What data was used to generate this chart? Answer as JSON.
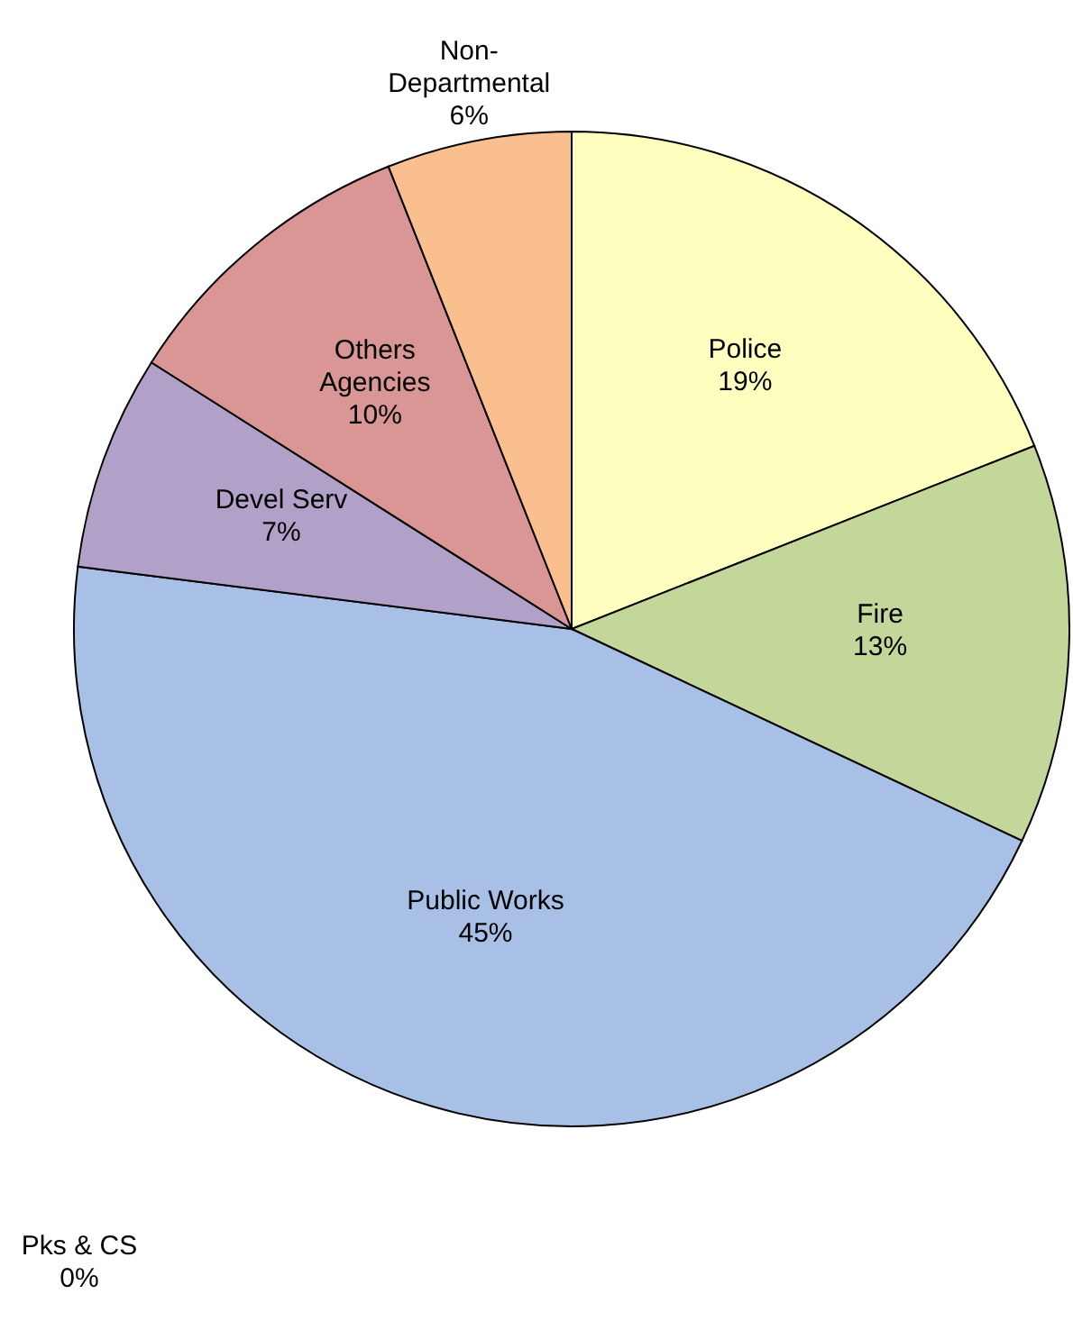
{
  "chart_data": {
    "type": "pie",
    "categories": [
      "Police",
      "Fire",
      "Public Works",
      "Pks & CS",
      "Devel Serv",
      "Others Agencies",
      "Non-Departmental"
    ],
    "values": [
      19,
      13,
      45,
      0,
      7,
      10,
      6
    ],
    "colors": [
      "#ffffc0",
      "#c4d79b",
      "#a8c0e6",
      "#93cddd",
      "#b1a0c7",
      "#da9694",
      "#fabf8f"
    ],
    "value_labels": [
      "19%",
      "13%",
      "45%",
      "0%",
      "7%",
      "10%",
      "6%"
    ]
  }
}
